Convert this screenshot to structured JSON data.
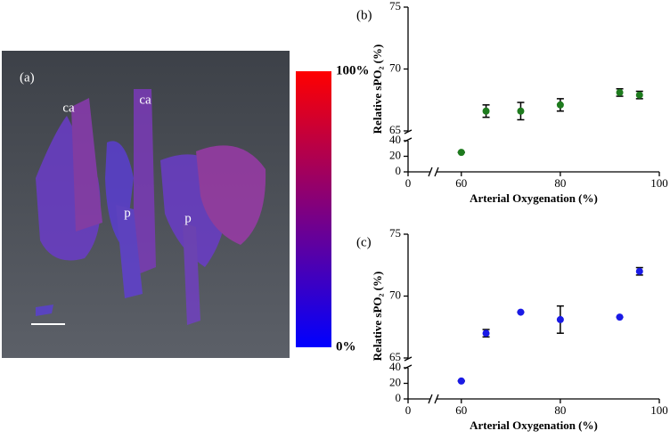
{
  "chart_data": [
    {
      "type": "image",
      "panel_label": "(a)",
      "annotations": [
        "ca",
        "ca",
        "p",
        "p"
      ],
      "colorbar_colors": [
        "#0000ff",
        "#ff0000"
      ],
      "colorbar_lim": [
        0,
        100
      ],
      "colorbar_ticks": [
        {
          "value": 100,
          "label": "100%"
        },
        {
          "value": 0,
          "label": "0%"
        }
      ]
    },
    {
      "type": "scatter",
      "panel_label": "(b)",
      "ylabel": "Relative sPO₂ (%)",
      "xlabel": "Arterial Oxygenation (%)",
      "x": [
        60,
        65,
        72,
        80,
        92,
        96
      ],
      "series": [
        {
          "color": "#1e7b1e",
          "values": [
            25,
            66.6,
            66.6,
            67.1,
            68.1,
            67.9
          ],
          "errors": [
            0,
            0.5,
            0.7,
            0.5,
            0.3,
            0.3
          ]
        }
      ],
      "xlim": [
        0,
        100
      ],
      "xbreak": [
        0,
        55
      ],
      "xticks": [
        0,
        60,
        80,
        100
      ],
      "ylim": [
        0,
        75
      ],
      "ybreak": [
        40,
        65
      ],
      "yticks": [
        0,
        20,
        40,
        65,
        70,
        75
      ]
    },
    {
      "type": "scatter",
      "panel_label": "(c)",
      "ylabel": "Relative sPO₂ (%)",
      "xlabel": "Arterial Oxygenation (%)",
      "x": [
        60,
        65,
        72,
        80,
        92,
        96
      ],
      "series": [
        {
          "color": "#1a1ae6",
          "values": [
            23,
            67.0,
            68.7,
            68.1,
            68.3,
            72.0
          ],
          "errors": [
            0,
            0.3,
            0,
            1.1,
            0,
            0.3
          ]
        }
      ],
      "xlim": [
        0,
        100
      ],
      "xbreak": [
        0,
        55
      ],
      "xticks": [
        0,
        60,
        80,
        100
      ],
      "ylim": [
        0,
        75
      ],
      "ybreak": [
        40,
        65
      ],
      "yticks": [
        0,
        20,
        40,
        65,
        70,
        75
      ]
    }
  ]
}
